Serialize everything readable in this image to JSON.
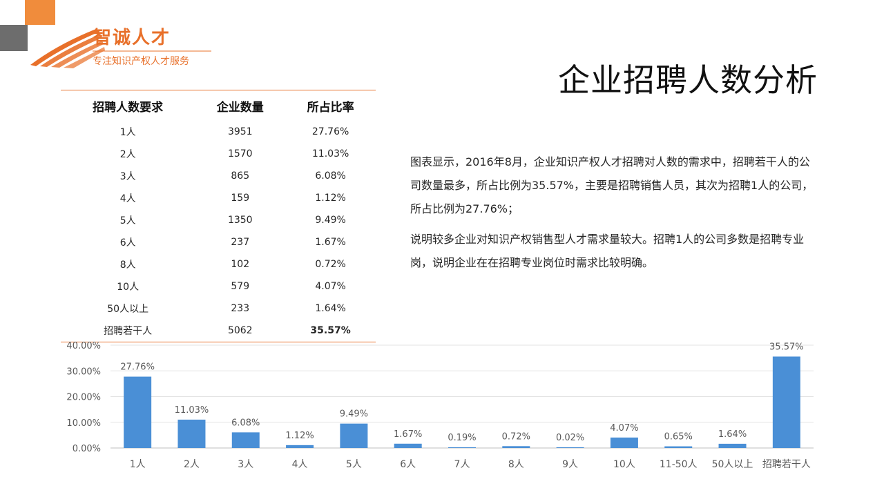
{
  "brand": {
    "title": "智诚人才",
    "subtitle": "专注知识产权人才服务",
    "accent_color": "#e8702a"
  },
  "page_title": "企业招聘人数分析",
  "table": {
    "headers": [
      "招聘人数要求",
      "企业数量",
      "所占比率"
    ],
    "rows": [
      [
        "1人",
        "3951",
        "27.76%"
      ],
      [
        "2人",
        "1570",
        "11.03%"
      ],
      [
        "3人",
        "865",
        "6.08%"
      ],
      [
        "4人",
        "159",
        "1.12%"
      ],
      [
        "5人",
        "1350",
        "9.49%"
      ],
      [
        "6人",
        "237",
        "1.67%"
      ],
      [
        "8人",
        "102",
        "0.72%"
      ],
      [
        "10人",
        "579",
        "4.07%"
      ],
      [
        "50人以上",
        "233",
        "1.64%"
      ],
      [
        "招聘若干人",
        "5062",
        "35.57%"
      ]
    ],
    "highlight_color": "#d0021b"
  },
  "description": {
    "p1": "图表显示，2016年8月，企业知识产权人才招聘对人数的需求中，招聘若干人的公司数量最多，所占比例为35.57%，主要是招聘销售人员，其次为招聘1人的公司，所占比例为27.76%；",
    "p2": "说明较多企业对知识产权销售型人才需求量较大。招聘1人的公司多数是招聘专业岗，说明企业在在招聘专业岗位时需求比较明确。"
  },
  "chart_data": {
    "type": "bar",
    "categories": [
      "1人",
      "2人",
      "3人",
      "4人",
      "5人",
      "6人",
      "7人",
      "8人",
      "9人",
      "10人",
      "11-50人",
      "50人以上",
      "招聘若干人"
    ],
    "values": [
      27.76,
      11.03,
      6.08,
      1.12,
      9.49,
      1.67,
      0.19,
      0.72,
      0.02,
      4.07,
      0.65,
      1.64,
      35.57
    ],
    "data_labels": [
      "27.76%",
      "11.03%",
      "6.08%",
      "1.12%",
      "9.49%",
      "1.67%",
      "0.19%",
      "0.72%",
      "0.02%",
      "4.07%",
      "0.65%",
      "1.64%",
      "35.57%"
    ],
    "yticks": [
      "0.00%",
      "10.00%",
      "20.00%",
      "30.00%",
      "40.00%"
    ],
    "ylim": [
      0,
      40
    ],
    "grid": true,
    "bar_color": "#4a8fd6",
    "title": "",
    "xlabel": "",
    "ylabel": ""
  }
}
